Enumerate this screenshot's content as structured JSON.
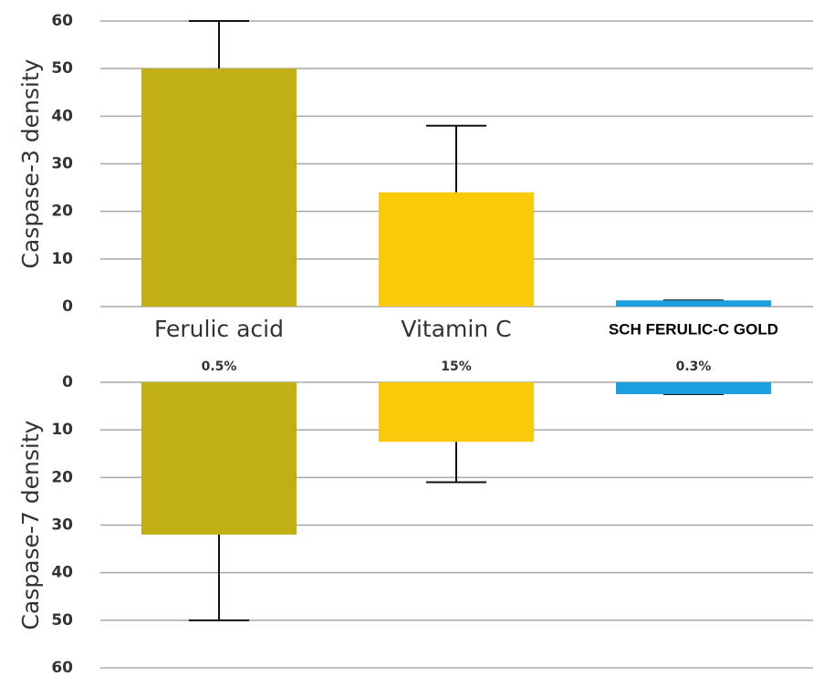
{
  "chart_data": [
    {
      "type": "bar",
      "ylabel": "Caspase-3 density",
      "categories": [
        "Ferulic acid",
        "Vitamin C",
        "SCH FERULIC-C GOLD"
      ],
      "concentrations": [
        "0.5%",
        "15%",
        "0.3%"
      ],
      "values": [
        50,
        24,
        1.3
      ],
      "errors": [
        10,
        14,
        0
      ],
      "colors": [
        "#c0b015",
        "#fcc80a",
        "#1a9fdf"
      ],
      "ylim": [
        0,
        60
      ],
      "yticks": [
        0,
        10,
        20,
        30,
        40,
        50,
        60
      ],
      "grid": true
    },
    {
      "type": "bar",
      "ylabel": "Caspase-7 density",
      "inverted": true,
      "values": [
        32,
        12.5,
        2.5
      ],
      "errors": [
        18,
        8.5,
        0
      ],
      "colors": [
        "#c0b015",
        "#fcc80a",
        "#1a9fdf"
      ],
      "ylim": [
        0,
        60
      ],
      "yticks": [
        0,
        10,
        20,
        30,
        40,
        50,
        60
      ],
      "grid": true
    }
  ]
}
